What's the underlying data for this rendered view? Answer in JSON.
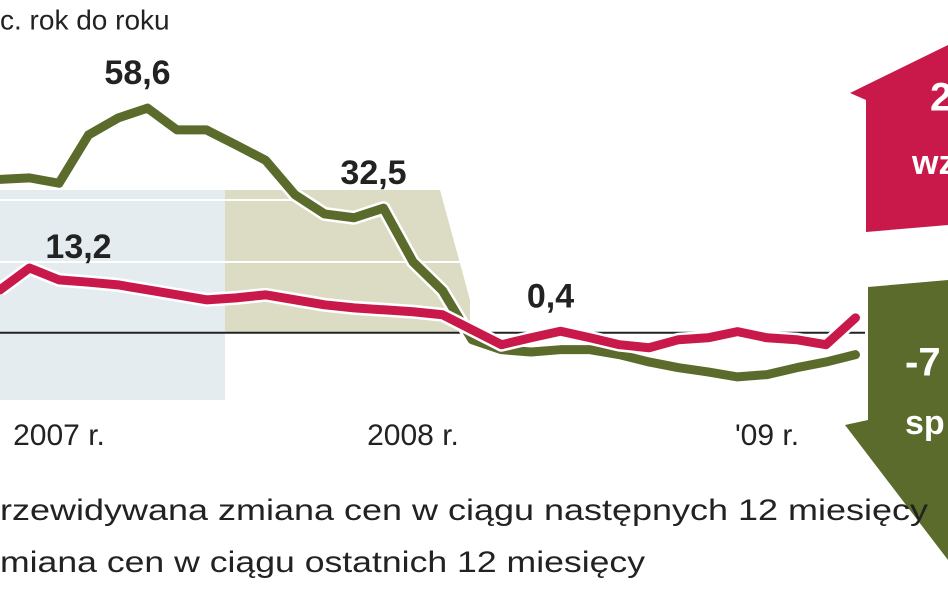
{
  "chart_data": {
    "type": "line",
    "y_label": "c. rok do roku",
    "categories": [
      null,
      null,
      "2007 r.",
      null,
      null,
      null,
      null,
      null,
      null,
      null,
      null,
      null,
      null,
      null,
      "2008 r.",
      null,
      null,
      null,
      null,
      null,
      null,
      null,
      null,
      null,
      null,
      null,
      "'09 r.",
      null,
      null,
      null
    ],
    "series": [
      {
        "name": "rzewidywana zmiana cen w ciągu następnych 12 miesięcy",
        "color": "#5b6b2b",
        "values": [
          40,
          40.4,
          39,
          51.6,
          56,
          58.6,
          52.9,
          52.9,
          49,
          45,
          36,
          31,
          30,
          32.5,
          18.5,
          11,
          -1.8,
          -4.4,
          -5,
          -4.4,
          -4.4,
          -5.7,
          -7.6,
          -9.1,
          -10.2,
          -11.5,
          -10.9,
          -9.1,
          -7.6,
          -5.7
        ],
        "value_labels": [
          null,
          null,
          null,
          null,
          null,
          "58,6",
          null,
          null,
          null,
          null,
          null,
          null,
          null,
          "32,5",
          null,
          null,
          null,
          null,
          null,
          null,
          null,
          null,
          null,
          null,
          null,
          null,
          null,
          null,
          null,
          null
        ]
      },
      {
        "name": "miana cen w ciągu ostatnich 12 miesięcy",
        "color": "#c8194a",
        "values": [
          11.2,
          16.9,
          13.8,
          13.2,
          12.5,
          11.2,
          9.9,
          8.6,
          9.1,
          9.9,
          8.6,
          7.3,
          6.5,
          6,
          5.5,
          4.7,
          0.8,
          -3.1,
          -1.3,
          0.4,
          -1.3,
          -3.1,
          -3.9,
          -1.8,
          -1.3,
          0.3,
          -1.3,
          -1.8,
          -3.1,
          3.9
        ],
        "value_labels": [
          null,
          null,
          null,
          "13,2",
          null,
          null,
          null,
          null,
          null,
          null,
          null,
          null,
          null,
          null,
          null,
          null,
          null,
          null,
          null,
          "0,4",
          null,
          null,
          null,
          null,
          null,
          null,
          null,
          null,
          null,
          null
        ]
      }
    ],
    "ylim": [
      -17,
      86
    ],
    "annotations": [
      "2",
      "wz",
      "-7",
      "sp"
    ]
  }
}
